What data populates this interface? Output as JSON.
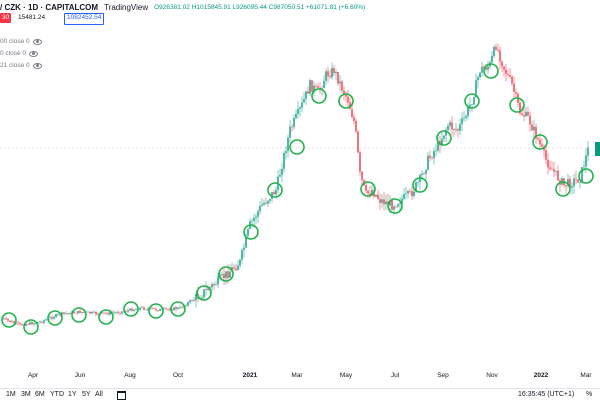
{
  "header": {
    "symbol": "/ CZK · 1D · CAPITALCOM",
    "brand": "TradingView",
    "ohlc": "O926381.02 H1015845.91 L926095.44 C987050.51 +61071.81 (+6.60%)",
    "price_tag_left": "30",
    "price_change": "15481.24",
    "price_current": "1082452.54"
  },
  "indicators": [
    {
      "label": "00 close 0",
      "icon": "eye-icon"
    },
    {
      "label": "0 close 0",
      "icon": "eye-icon"
    },
    {
      "label": "21 close 0",
      "icon": "eye-icon"
    }
  ],
  "chart_data": {
    "type": "candlestick",
    "x_labels": [
      "Apr",
      "Jun",
      "Aug",
      "Oct",
      "2021",
      "Mar",
      "May",
      "Jul",
      "Sep",
      "Nov",
      "2022",
      "Mar"
    ],
    "x_label_bold": [
      "2021",
      "2022"
    ],
    "colors": {
      "up": "#089981",
      "down": "#f23645",
      "marker": "#22b24c"
    }
  },
  "bottombar": {
    "ranges": [
      "1M",
      "3M",
      "6M",
      "YTD",
      "1Y",
      "5Y",
      "All"
    ],
    "clock": "16:35:45 (UTC+1)",
    "percent_label": "%"
  }
}
